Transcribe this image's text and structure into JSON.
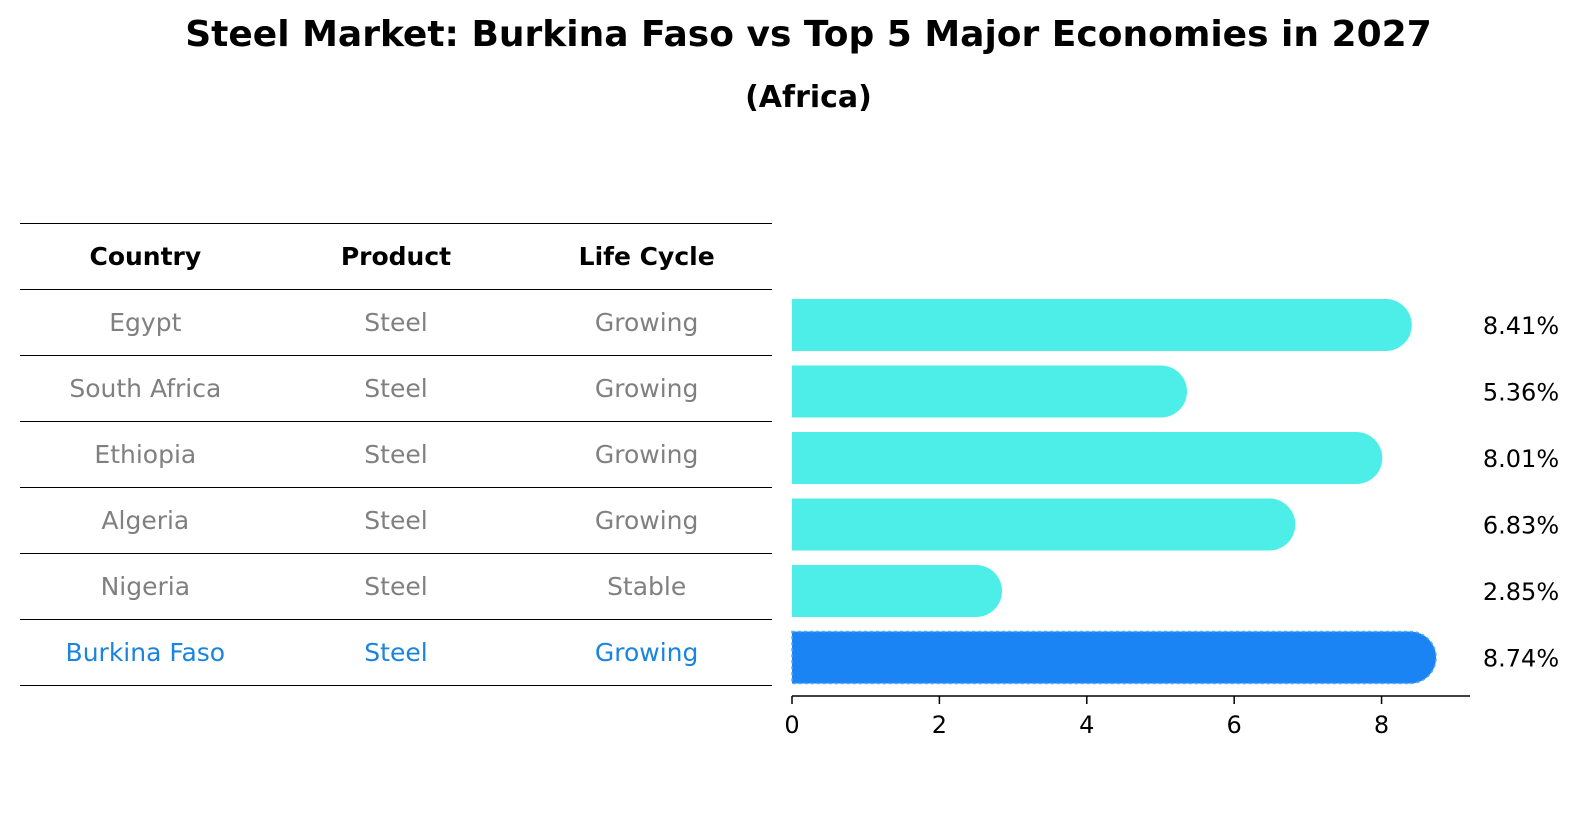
{
  "title": "Steel Market: Burkina Faso vs Top 5 Major Economies in 2027",
  "subtitle": "(Africa)",
  "table": {
    "headers": [
      "Country",
      "Product",
      "Life Cycle"
    ],
    "rows": [
      {
        "country": "Egypt",
        "product": "Steel",
        "life_cycle": "Growing"
      },
      {
        "country": "South Africa",
        "product": "Steel",
        "life_cycle": "Growing"
      },
      {
        "country": "Ethiopia",
        "product": "Steel",
        "life_cycle": "Growing"
      },
      {
        "country": "Algeria",
        "product": "Steel",
        "life_cycle": "Growing"
      },
      {
        "country": "Nigeria",
        "product": "Steel",
        "life_cycle": "Stable"
      },
      {
        "country": "Burkina Faso",
        "product": "Steel",
        "life_cycle": "Growing"
      }
    ],
    "highlight_color": "#1a84de",
    "text_color": "#808080"
  },
  "chart_data": {
    "type": "bar",
    "orientation": "horizontal",
    "categories": [
      "Egypt",
      "South Africa",
      "Ethiopia",
      "Algeria",
      "Nigeria",
      "Burkina Faso"
    ],
    "values": [
      8.41,
      5.36,
      8.01,
      6.83,
      2.85,
      8.74
    ],
    "value_labels": [
      "8.41%",
      "5.36%",
      "8.01%",
      "6.83%",
      "2.85%",
      "8.74%"
    ],
    "xticks": [
      0,
      2,
      4,
      6,
      8
    ],
    "xlim": [
      0,
      9.2
    ],
    "highlight_index": 5,
    "colors": {
      "default": "#4deee8",
      "highlight": "#1a84f5"
    },
    "grid": false
  }
}
